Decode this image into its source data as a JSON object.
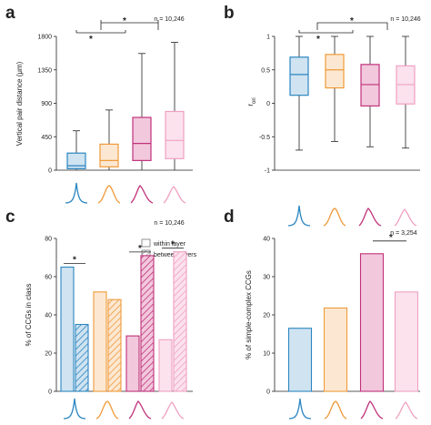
{
  "colors": {
    "blue": "#2b86c0",
    "blue_fill": "#cfe3f1",
    "orange": "#ef9a3a",
    "orange_fill": "#fce8d2",
    "magenta": "#c0317a",
    "magenta_fill": "#f2c8dc",
    "pink": "#efa1c2",
    "pink_fill": "#fbe2ec"
  },
  "chart_data": [
    {
      "type": "box",
      "panel": "a",
      "ylabel": "Vertical pair distance (μm)",
      "ylim": [
        0,
        1800
      ],
      "yticks": [
        0,
        450,
        900,
        1350,
        1800
      ],
      "n_label": "n = 10,246",
      "significance": [
        "*",
        "*"
      ],
      "boxes": [
        {
          "color": "blue",
          "whislo": 0,
          "q1": 20,
          "med": 60,
          "q3": 230,
          "whishi": 530
        },
        {
          "color": "orange",
          "whislo": 0,
          "q1": 45,
          "med": 130,
          "q3": 350,
          "whishi": 810
        },
        {
          "color": "magenta",
          "whislo": 0,
          "q1": 130,
          "med": 360,
          "q3": 710,
          "whishi": 1570
        },
        {
          "color": "pink",
          "whislo": 0,
          "q1": 155,
          "med": 400,
          "q3": 790,
          "whishi": 1720
        }
      ]
    },
    {
      "type": "box",
      "panel": "b",
      "ylabel_main": "r",
      "ylabel_sub": "ori",
      "ylim": [
        -1,
        1
      ],
      "yticks": [
        -1,
        -0.5,
        0,
        0.5,
        1
      ],
      "ytick_labels": [
        "-1",
        "-0.5",
        "0",
        "0.5",
        "1"
      ],
      "n_label": "n = 10,246",
      "significance": [
        "*",
        "*"
      ],
      "boxes": [
        {
          "color": "blue",
          "whislo": -0.7,
          "q1": 0.12,
          "med": 0.43,
          "q3": 0.69,
          "whishi": 1.0
        },
        {
          "color": "orange",
          "whislo": -0.57,
          "q1": 0.23,
          "med": 0.5,
          "q3": 0.73,
          "whishi": 1.0
        },
        {
          "color": "magenta",
          "whislo": -0.65,
          "q1": -0.04,
          "med": 0.28,
          "q3": 0.58,
          "whishi": 1.0
        },
        {
          "color": "pink",
          "whislo": -0.67,
          "q1": -0.01,
          "med": 0.28,
          "q3": 0.56,
          "whishi": 1.0
        }
      ]
    },
    {
      "type": "bar",
      "panel": "c",
      "ylabel": "% of CCGs in class",
      "ylim": [
        0,
        80
      ],
      "yticks": [
        0,
        20,
        40,
        60,
        80
      ],
      "n_label": "n = 10,246",
      "legend": [
        "within layer",
        "between layers"
      ],
      "significance": [
        "*",
        "*",
        "*"
      ],
      "groups": [
        {
          "color": "blue",
          "within": 65,
          "between": 35
        },
        {
          "color": "orange",
          "within": 52,
          "between": 48
        },
        {
          "color": "magenta",
          "within": 29,
          "between": 71
        },
        {
          "color": "pink",
          "within": 27,
          "between": 73
        }
      ]
    },
    {
      "type": "bar",
      "panel": "d",
      "ylabel": "% of simple-complex CCGs",
      "ylim": [
        0,
        40
      ],
      "yticks": [
        0,
        10,
        20,
        30,
        40
      ],
      "n_label": "n = 3,254",
      "significance": [
        "*"
      ],
      "bars": [
        {
          "color": "blue",
          "value": 16.5
        },
        {
          "color": "orange",
          "value": 21.8
        },
        {
          "color": "magenta",
          "value": 36
        },
        {
          "color": "pink",
          "value": 26
        }
      ]
    }
  ]
}
